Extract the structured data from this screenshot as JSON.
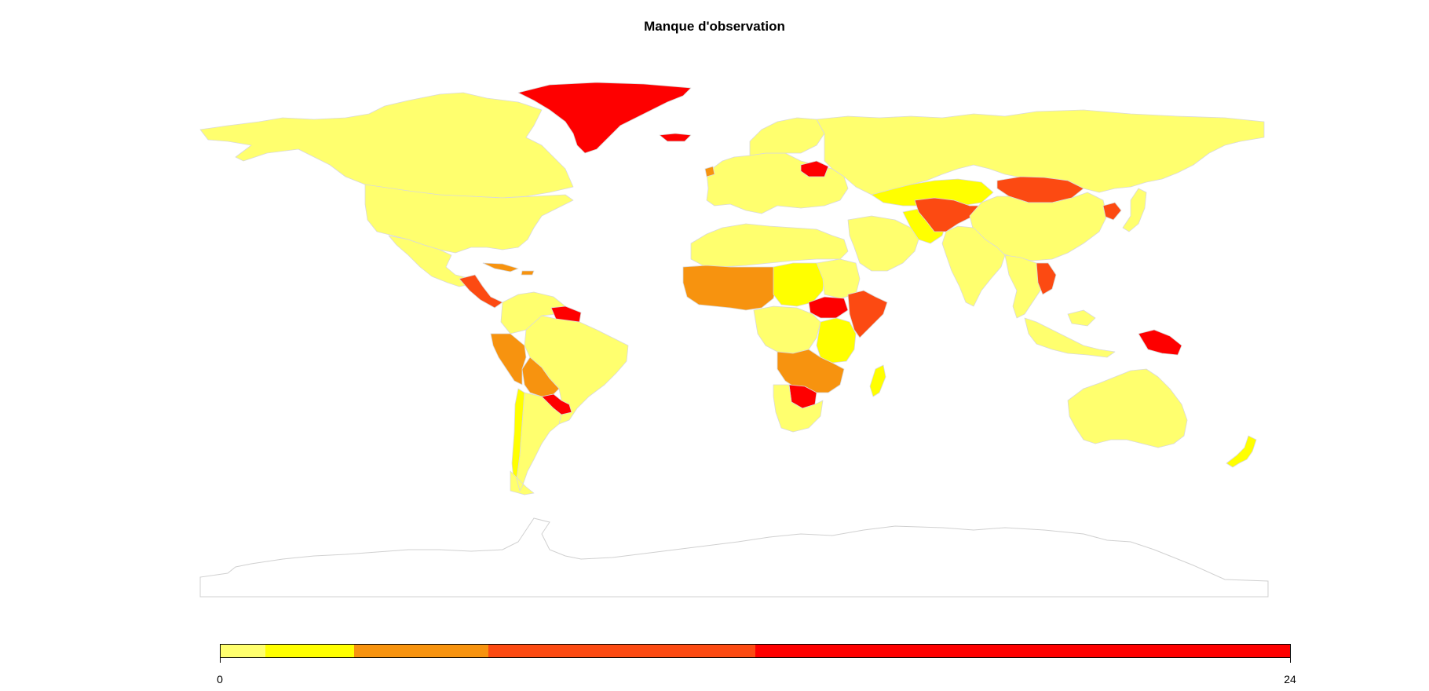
{
  "title": "Manque d'observation",
  "palette": {
    "c1": "#ffff6e",
    "c2": "#ffff00",
    "c3": "#f7930f",
    "c4": "#fc4a12",
    "c5": "#fe0000",
    "border": "#d9d9d9"
  },
  "legend": {
    "min_label": "0",
    "max_label": "24",
    "min": 0,
    "max": 24,
    "breaks": [
      0,
      1,
      3,
      6,
      12,
      24
    ],
    "colors": [
      "#ffff6e",
      "#ffff00",
      "#f7930f",
      "#fc4a12",
      "#fe0000"
    ]
  },
  "regions": [
    {
      "name": "canada-alaska",
      "class": 0
    },
    {
      "name": "usa",
      "class": 0
    },
    {
      "name": "mexico",
      "class": 0
    },
    {
      "name": "greenland",
      "class": 4
    },
    {
      "name": "central-america",
      "class": 3
    },
    {
      "name": "caribbean",
      "class": 2
    },
    {
      "name": "colombia-venezuela",
      "class": 0
    },
    {
      "name": "guianas",
      "class": 4
    },
    {
      "name": "brazil",
      "class": 0
    },
    {
      "name": "peru",
      "class": 2
    },
    {
      "name": "bolivia",
      "class": 2
    },
    {
      "name": "paraguay",
      "class": 4
    },
    {
      "name": "chile",
      "class": 1
    },
    {
      "name": "argentina",
      "class": 0
    },
    {
      "name": "europe",
      "class": 0
    },
    {
      "name": "scandinavia",
      "class": 0
    },
    {
      "name": "belarus",
      "class": 4
    },
    {
      "name": "russia",
      "class": 0
    },
    {
      "name": "north-africa",
      "class": 0
    },
    {
      "name": "west-africa-sahel",
      "class": 2
    },
    {
      "name": "chad-niger",
      "class": 1
    },
    {
      "name": "sudan",
      "class": 0
    },
    {
      "name": "south-sudan",
      "class": 4
    },
    {
      "name": "ethiopia-somalia",
      "class": 3
    },
    {
      "name": "central-africa",
      "class": 0
    },
    {
      "name": "east-africa",
      "class": 1
    },
    {
      "name": "southern-africa-north",
      "class": 2
    },
    {
      "name": "botswana",
      "class": 4
    },
    {
      "name": "south-africa",
      "class": 0
    },
    {
      "name": "madagascar",
      "class": 1
    },
    {
      "name": "middle-east",
      "class": 0
    },
    {
      "name": "iran",
      "class": 1
    },
    {
      "name": "central-asia",
      "class": 1
    },
    {
      "name": "afghanistan-tajikistan",
      "class": 3
    },
    {
      "name": "mongolia",
      "class": 3
    },
    {
      "name": "china",
      "class": 0
    },
    {
      "name": "india",
      "class": 0
    },
    {
      "name": "southeast-asia",
      "class": 0
    },
    {
      "name": "laos-cambodia",
      "class": 3
    },
    {
      "name": "north-korea",
      "class": 3
    },
    {
      "name": "japan",
      "class": 0
    },
    {
      "name": "indonesia",
      "class": 0
    },
    {
      "name": "papua-new-guinea",
      "class": 4
    },
    {
      "name": "australia",
      "class": 0
    },
    {
      "name": "new-zealand",
      "class": 1
    },
    {
      "name": "iceland",
      "class": 4
    },
    {
      "name": "ireland",
      "class": 2
    }
  ]
}
